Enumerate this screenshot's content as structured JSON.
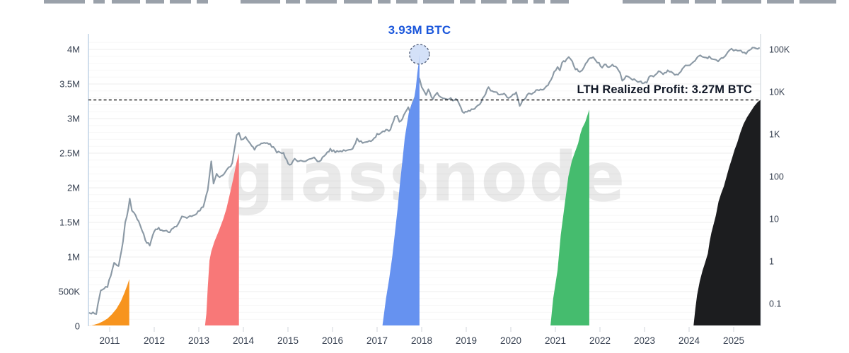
{
  "watermark": {
    "text": "glassnode"
  },
  "header": {
    "truncated_title_fragments": [
      [
        62,
        58
      ],
      [
        132,
        16
      ],
      [
        158,
        40
      ],
      [
        206,
        26
      ],
      [
        240,
        30
      ],
      [
        278,
        16
      ],
      [
        340,
        56
      ],
      [
        404,
        20
      ],
      [
        432,
        44
      ],
      [
        486,
        40
      ],
      [
        534,
        18
      ],
      [
        560,
        30
      ],
      [
        598,
        44
      ],
      [
        650,
        22
      ],
      [
        680,
        36
      ],
      [
        724,
        22
      ],
      [
        754,
        16
      ],
      [
        778,
        26
      ],
      [
        880,
        60
      ],
      [
        948,
        26
      ],
      [
        982,
        30
      ],
      [
        1020,
        56
      ],
      [
        1084,
        38
      ],
      [
        1130,
        52
      ]
    ]
  },
  "chart_data": {
    "type": "area+line",
    "x_unit": "year",
    "annotations": {
      "peak_label": "3.93M BTC",
      "peak_label_color": "#1a56db",
      "peak_point": {
        "year": 2017.95,
        "value_m_btc": 3.93
      },
      "hline_label": "LTH Realized Profit: 3.27M BTC",
      "hline_value_m_btc": 3.27
    },
    "axes": {
      "left": {
        "scale": "linear",
        "unit": "BTC",
        "ticks": [
          {
            "label": "0",
            "value": 0
          },
          {
            "label": "500K",
            "value": 0.5
          },
          {
            "label": "1M",
            "value": 1
          },
          {
            "label": "1.5M",
            "value": 1.5
          },
          {
            "label": "2M",
            "value": 2
          },
          {
            "label": "2.5M",
            "value": 2.5
          },
          {
            "label": "3M",
            "value": 3
          },
          {
            "label": "3.5M",
            "value": 3.5
          },
          {
            "label": "4M",
            "value": 4
          }
        ]
      },
      "right": {
        "scale": "log",
        "ticks": [
          {
            "label": "0.1",
            "value": 0.1
          },
          {
            "label": "1",
            "value": 1
          },
          {
            "label": "10",
            "value": 10
          },
          {
            "label": "100",
            "value": 100
          },
          {
            "label": "1K",
            "value": 1000
          },
          {
            "label": "10K",
            "value": 10000
          },
          {
            "label": "100K",
            "value": 100000
          }
        ]
      },
      "x": {
        "ticks": [
          {
            "label": "2011",
            "year": 2011
          },
          {
            "label": "2012",
            "year": 2012
          },
          {
            "label": "2013",
            "year": 2013
          },
          {
            "label": "2014",
            "year": 2014
          },
          {
            "label": "2015",
            "year": 2015
          },
          {
            "label": "2016",
            "year": 2016
          },
          {
            "label": "2017",
            "year": 2017
          },
          {
            "label": "2018",
            "year": 2018
          },
          {
            "label": "2019",
            "year": 2019
          },
          {
            "label": "2020",
            "year": 2020
          },
          {
            "label": "2021",
            "year": 2021
          },
          {
            "label": "2022",
            "year": 2022
          },
          {
            "label": "2023",
            "year": 2023
          },
          {
            "label": "2024",
            "year": 2024
          },
          {
            "label": "2025",
            "year": 2025
          }
        ]
      }
    },
    "colors": {
      "price_line": "#8B99A5",
      "hline": "#111111",
      "circle_fill": "#C9D9F6",
      "circle_stroke": "#55617A",
      "left_border": "#BCD0E4",
      "right_border": "#D2D8DE",
      "tick": "#D1D5DB",
      "axis_text": "#374151"
    },
    "cycle_areas": [
      {
        "name": "cycle-2011",
        "color": "#F7941E",
        "points": [
          [
            2010.55,
            0.005
          ],
          [
            2010.65,
            0.02
          ],
          [
            2010.75,
            0.04
          ],
          [
            2010.85,
            0.07
          ],
          [
            2010.95,
            0.11
          ],
          [
            2011.05,
            0.17
          ],
          [
            2011.15,
            0.25
          ],
          [
            2011.25,
            0.36
          ],
          [
            2011.33,
            0.48
          ],
          [
            2011.4,
            0.6
          ],
          [
            2011.44,
            0.68
          ]
        ]
      },
      {
        "name": "cycle-2013",
        "color": "#F87878",
        "points": [
          [
            2013.14,
            0.01
          ],
          [
            2013.17,
            0.18
          ],
          [
            2013.2,
            0.55
          ],
          [
            2013.24,
            0.95
          ],
          [
            2013.28,
            1.08
          ],
          [
            2013.35,
            1.22
          ],
          [
            2013.45,
            1.38
          ],
          [
            2013.55,
            1.55
          ],
          [
            2013.62,
            1.7
          ],
          [
            2013.7,
            1.92
          ],
          [
            2013.78,
            2.15
          ],
          [
            2013.84,
            2.35
          ],
          [
            2013.88,
            2.45
          ],
          [
            2013.9,
            2.5
          ]
        ]
      },
      {
        "name": "cycle-2017",
        "color": "#6692F0",
        "points": [
          [
            2017.12,
            0.01
          ],
          [
            2017.2,
            0.4
          ],
          [
            2017.27,
            0.68
          ],
          [
            2017.34,
            1.0
          ],
          [
            2017.4,
            1.35
          ],
          [
            2017.46,
            1.7
          ],
          [
            2017.51,
            2.04
          ],
          [
            2017.57,
            2.4
          ],
          [
            2017.62,
            2.72
          ],
          [
            2017.67,
            2.92
          ],
          [
            2017.71,
            3.08
          ],
          [
            2017.77,
            3.2
          ],
          [
            2017.83,
            3.29
          ],
          [
            2017.87,
            3.45
          ],
          [
            2017.9,
            3.64
          ],
          [
            2017.93,
            3.8
          ],
          [
            2017.95,
            3.93
          ]
        ]
      },
      {
        "name": "cycle-2021",
        "color": "#45BC6E",
        "points": [
          [
            2020.89,
            0.01
          ],
          [
            2020.95,
            0.4
          ],
          [
            2021.05,
            0.81
          ],
          [
            2021.12,
            1.32
          ],
          [
            2021.21,
            1.76
          ],
          [
            2021.29,
            2.16
          ],
          [
            2021.37,
            2.39
          ],
          [
            2021.43,
            2.5
          ],
          [
            2021.51,
            2.64
          ],
          [
            2021.56,
            2.78
          ],
          [
            2021.6,
            2.86
          ],
          [
            2021.67,
            2.95
          ],
          [
            2021.71,
            3.03
          ],
          [
            2021.76,
            3.13
          ]
        ]
      },
      {
        "name": "cycle-2025",
        "color": "#1C1D1F",
        "points": [
          [
            2024.1,
            0.01
          ],
          [
            2024.14,
            0.25
          ],
          [
            2024.18,
            0.45
          ],
          [
            2024.24,
            0.65
          ],
          [
            2024.3,
            0.8
          ],
          [
            2024.36,
            0.92
          ],
          [
            2024.42,
            1.05
          ],
          [
            2024.46,
            1.22
          ],
          [
            2024.5,
            1.35
          ],
          [
            2024.56,
            1.5
          ],
          [
            2024.6,
            1.6
          ],
          [
            2024.66,
            1.8
          ],
          [
            2024.72,
            1.92
          ],
          [
            2024.78,
            2.02
          ],
          [
            2024.84,
            2.16
          ],
          [
            2024.9,
            2.3
          ],
          [
            2024.96,
            2.42
          ],
          [
            2025.02,
            2.55
          ],
          [
            2025.08,
            2.65
          ],
          [
            2025.15,
            2.8
          ],
          [
            2025.22,
            2.92
          ],
          [
            2025.3,
            3.02
          ],
          [
            2025.38,
            3.1
          ],
          [
            2025.46,
            3.18
          ],
          [
            2025.54,
            3.24
          ],
          [
            2025.6,
            3.27
          ]
        ]
      }
    ],
    "price_line_points": [
      [
        2010.55,
        0.06
      ],
      [
        2010.7,
        0.06
      ],
      [
        2010.8,
        0.2
      ],
      [
        2010.95,
        0.25
      ],
      [
        2011.1,
        0.9
      ],
      [
        2011.2,
        0.8
      ],
      [
        2011.3,
        3
      ],
      [
        2011.35,
        8
      ],
      [
        2011.42,
        17
      ],
      [
        2011.45,
        30
      ],
      [
        2011.5,
        16
      ],
      [
        2011.55,
        14
      ],
      [
        2011.65,
        9
      ],
      [
        2011.8,
        3.2
      ],
      [
        2011.9,
        2.3
      ],
      [
        2012.0,
        5.3
      ],
      [
        2012.1,
        6.1
      ],
      [
        2012.2,
        4.9
      ],
      [
        2012.35,
        5.1
      ],
      [
        2012.5,
        6.7
      ],
      [
        2012.62,
        11
      ],
      [
        2012.7,
        10.2
      ],
      [
        2012.8,
        11.7
      ],
      [
        2012.95,
        13.4
      ],
      [
        2013.1,
        20
      ],
      [
        2013.2,
        47
      ],
      [
        2013.28,
        230
      ],
      [
        2013.33,
        68
      ],
      [
        2013.4,
        110
      ],
      [
        2013.5,
        97
      ],
      [
        2013.6,
        127
      ],
      [
        2013.75,
        200
      ],
      [
        2013.85,
        1000
      ],
      [
        2013.9,
        1150
      ],
      [
        2013.95,
        700
      ],
      [
        2014.0,
        760
      ],
      [
        2014.05,
        850
      ],
      [
        2014.15,
        620
      ],
      [
        2014.25,
        450
      ],
      [
        2014.4,
        590
      ],
      [
        2014.5,
        640
      ],
      [
        2014.6,
        580
      ],
      [
        2014.75,
        380
      ],
      [
        2014.9,
        350
      ],
      [
        2015.04,
        178
      ],
      [
        2015.15,
        250
      ],
      [
        2015.25,
        236
      ],
      [
        2015.4,
        230
      ],
      [
        2015.55,
        280
      ],
      [
        2015.7,
        230
      ],
      [
        2015.85,
        330
      ],
      [
        2015.95,
        430
      ],
      [
        2016.1,
        380
      ],
      [
        2016.25,
        420
      ],
      [
        2016.45,
        450
      ],
      [
        2016.55,
        770
      ],
      [
        2016.6,
        660
      ],
      [
        2016.75,
        610
      ],
      [
        2016.9,
        730
      ],
      [
        2017.0,
        970
      ],
      [
        2017.1,
        1100
      ],
      [
        2017.2,
        1200
      ],
      [
        2017.3,
        1250
      ],
      [
        2017.4,
        2500
      ],
      [
        2017.45,
        2700
      ],
      [
        2017.5,
        1900
      ],
      [
        2017.6,
        2700
      ],
      [
        2017.7,
        4400
      ],
      [
        2017.74,
        3200
      ],
      [
        2017.8,
        5700
      ],
      [
        2017.85,
        7200
      ],
      [
        2017.9,
        9900
      ],
      [
        2017.95,
        19400
      ],
      [
        2018.0,
        13500
      ],
      [
        2018.05,
        10500
      ],
      [
        2018.1,
        8500
      ],
      [
        2018.15,
        11000
      ],
      [
        2018.25,
        7000
      ],
      [
        2018.35,
        9200
      ],
      [
        2018.45,
        7500
      ],
      [
        2018.55,
        6400
      ],
      [
        2018.65,
        7300
      ],
      [
        2018.7,
        6500
      ],
      [
        2018.8,
        6400
      ],
      [
        2018.88,
        4000
      ],
      [
        2018.95,
        3200
      ],
      [
        2019.05,
        3500
      ],
      [
        2019.15,
        3900
      ],
      [
        2019.3,
        5200
      ],
      [
        2019.4,
        8000
      ],
      [
        2019.5,
        12900
      ],
      [
        2019.55,
        10800
      ],
      [
        2019.65,
        10200
      ],
      [
        2019.75,
        8500
      ],
      [
        2019.85,
        9200
      ],
      [
        2019.95,
        7200
      ],
      [
        2020.05,
        8200
      ],
      [
        2020.12,
        10300
      ],
      [
        2020.2,
        4900
      ],
      [
        2020.3,
        6800
      ],
      [
        2020.4,
        9400
      ],
      [
        2020.5,
        9100
      ],
      [
        2020.6,
        11500
      ],
      [
        2020.7,
        10500
      ],
      [
        2020.8,
        13800
      ],
      [
        2020.9,
        18000
      ],
      [
        2020.97,
        29000
      ],
      [
        2021.05,
        38000
      ],
      [
        2021.1,
        32000
      ],
      [
        2021.15,
        48000
      ],
      [
        2021.25,
        58000
      ],
      [
        2021.3,
        63000
      ],
      [
        2021.38,
        50000
      ],
      [
        2021.45,
        35000
      ],
      [
        2021.55,
        31500
      ],
      [
        2021.6,
        34000
      ],
      [
        2021.68,
        47000
      ],
      [
        2021.78,
        61000
      ],
      [
        2021.85,
        67000
      ],
      [
        2021.9,
        57000
      ],
      [
        2021.98,
        46000
      ],
      [
        2022.05,
        38000
      ],
      [
        2022.1,
        44000
      ],
      [
        2022.2,
        39000
      ],
      [
        2022.28,
        46000
      ],
      [
        2022.35,
        38500
      ],
      [
        2022.45,
        29000
      ],
      [
        2022.5,
        19000
      ],
      [
        2022.55,
        21500
      ],
      [
        2022.62,
        23500
      ],
      [
        2022.7,
        20000
      ],
      [
        2022.8,
        19500
      ],
      [
        2022.85,
        16500
      ],
      [
        2022.95,
        16800
      ],
      [
        2023.05,
        17200
      ],
      [
        2023.1,
        23000
      ],
      [
        2023.2,
        22500
      ],
      [
        2023.28,
        28500
      ],
      [
        2023.35,
        29500
      ],
      [
        2023.45,
        26500
      ],
      [
        2023.52,
        30500
      ],
      [
        2023.6,
        29500
      ],
      [
        2023.68,
        26000
      ],
      [
        2023.75,
        26500
      ],
      [
        2023.85,
        35000
      ],
      [
        2023.95,
        43500
      ],
      [
        2024.05,
        43000
      ],
      [
        2024.1,
        49000
      ],
      [
        2024.2,
        68000
      ],
      [
        2024.25,
        71000
      ],
      [
        2024.35,
        62500
      ],
      [
        2024.45,
        65000
      ],
      [
        2024.5,
        58000
      ],
      [
        2024.58,
        61000
      ],
      [
        2024.65,
        54500
      ],
      [
        2024.72,
        63000
      ],
      [
        2024.8,
        69000
      ],
      [
        2024.87,
        91000
      ],
      [
        2024.95,
        98000
      ],
      [
        2025.0,
        94000
      ],
      [
        2025.05,
        102000
      ],
      [
        2025.12,
        97000
      ],
      [
        2025.2,
        84000
      ],
      [
        2025.28,
        82000
      ],
      [
        2025.35,
        95000
      ],
      [
        2025.42,
        104000
      ],
      [
        2025.5,
        107000
      ],
      [
        2025.57,
        108000
      ]
    ]
  }
}
